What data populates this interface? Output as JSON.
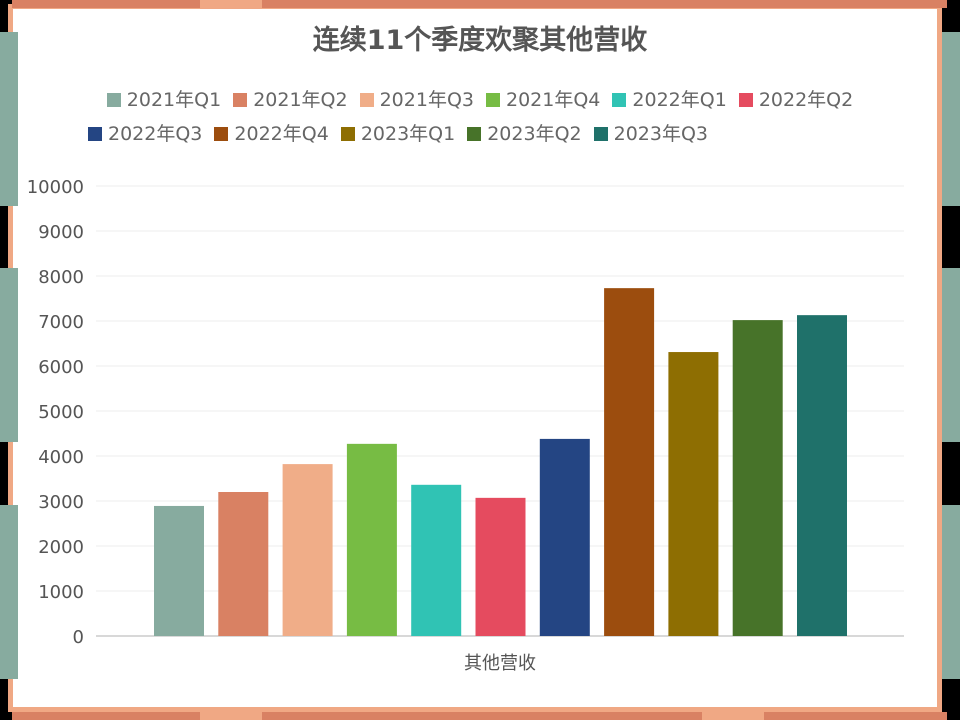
{
  "colors": {
    "frame_orange": "#d98163",
    "frame_peach": "#f0a884",
    "frame_teal": "#87ab9f"
  },
  "chart_data": {
    "type": "bar",
    "title": "连续11个季度欢聚其他营收",
    "categories": [
      "其他营收"
    ],
    "xlabel": "",
    "ylabel": "",
    "ylim": [
      0,
      10000
    ],
    "yticks": [
      0,
      1000,
      2000,
      3000,
      4000,
      5000,
      6000,
      7000,
      8000,
      9000,
      10000
    ],
    "grid": true,
    "legend_position": "top",
    "series": [
      {
        "name": "2021年Q1",
        "values": [
          2890
        ],
        "color": "#87ab9f"
      },
      {
        "name": "2021年Q2",
        "values": [
          3200
        ],
        "color": "#d98163"
      },
      {
        "name": "2021年Q3",
        "values": [
          3820
        ],
        "color": "#f0ad88"
      },
      {
        "name": "2021年Q4",
        "values": [
          4270
        ],
        "color": "#77bc44"
      },
      {
        "name": "2022年Q1",
        "values": [
          3360
        ],
        "color": "#30c3b4"
      },
      {
        "name": "2022年Q2",
        "values": [
          3070
        ],
        "color": "#e54b5f"
      },
      {
        "name": "2022年Q3",
        "values": [
          4380
        ],
        "color": "#244583"
      },
      {
        "name": "2022年Q4",
        "values": [
          7730
        ],
        "color": "#9c4d0e"
      },
      {
        "name": "2023年Q1",
        "values": [
          6310
        ],
        "color": "#8e6e02"
      },
      {
        "name": "2023年Q2",
        "values": [
          7020
        ],
        "color": "#477329"
      },
      {
        "name": "2023年Q3",
        "values": [
          7130
        ],
        "color": "#1f716a"
      }
    ]
  }
}
